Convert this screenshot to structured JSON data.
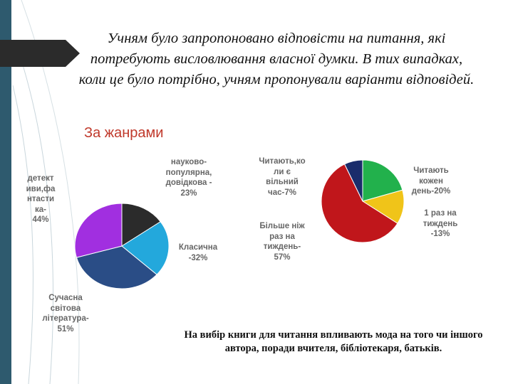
{
  "intro_text": "Учням було запропоновано відповісти на питання, які потребують висловлювання власної думки. В тих випадках, коли це було потрібно, учням пропонували варіанти відповідей.",
  "subtitle": "За жанрами",
  "footer_note": "На вибір книги для читання впливають мода на того чи іншого автора, поради вчителя, бібліотекаря, батьків.",
  "colors": {
    "side_bar": "#2e5a6e",
    "subtitle": "#c0392b"
  },
  "chart_data": [
    {
      "type": "pie",
      "labels": {
        "dark": "науково-популярна, довідкова - 23%",
        "lightblue": "Класична -32%",
        "darkblue": "Сучасна світова література - 51%",
        "purple": "детективи, фантастика - 44%"
      },
      "slices": [
        {
          "key": "dark",
          "label_lines": [
            "науково-",
            "популярна,",
            "довідкова -",
            "23%"
          ],
          "value": 23,
          "color": "#2b2b2b"
        },
        {
          "key": "lightblue",
          "label_lines": [
            "Класична",
            "-32%"
          ],
          "value": 32,
          "color": "#23a8dc"
        },
        {
          "key": "darkblue",
          "label_lines": [
            "Сучасна",
            "світова",
            "література-",
            "51%"
          ],
          "value": 51,
          "color": "#2a4d86"
        },
        {
          "key": "purple",
          "label_lines": [
            "детект",
            "иви,фа",
            "нтасти",
            "ка-",
            "44%"
          ],
          "value": 44,
          "color": "#a12fe0"
        }
      ]
    },
    {
      "type": "pie",
      "slices": [
        {
          "key": "green",
          "label_lines": [
            "Читають",
            "кожен",
            "день-20%"
          ],
          "value": 20,
          "color": "#22b14c"
        },
        {
          "key": "yellow",
          "label_lines": [
            "1 раз на",
            "тиждень",
            "-13%"
          ],
          "value": 13,
          "color": "#f0c419"
        },
        {
          "key": "red",
          "label_lines": [
            "Більше ніж",
            "раз на",
            "тиждень-",
            "57%"
          ],
          "value": 57,
          "color": "#c0161b"
        },
        {
          "key": "navy",
          "label_lines": [
            "Читають,ко",
            "ли є",
            "вільний",
            "час-7%"
          ],
          "value": 7,
          "color": "#1a2c6b"
        }
      ]
    }
  ]
}
